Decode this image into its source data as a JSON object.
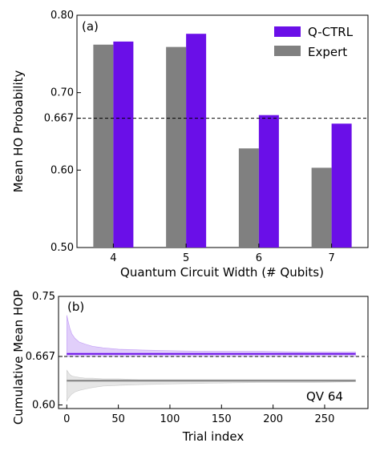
{
  "chart_data": [
    {
      "type": "bar",
      "panel_label": "(a)",
      "xlabel": "Quantum Circuit Width (# Qubits)",
      "ylabel": "Mean HO Probability",
      "categories": [
        "4",
        "5",
        "6",
        "7"
      ],
      "ylim": [
        0.5,
        0.8
      ],
      "yticks": [
        0.5,
        0.6,
        0.667,
        0.7,
        0.8
      ],
      "ytick_labels": [
        "0.50",
        "0.60",
        "0.667",
        "0.70",
        "0.80"
      ],
      "reference_line": 0.667,
      "legend_position": "top-right",
      "grid": false,
      "series": [
        {
          "name": "Expert",
          "color": "#808080",
          "values": [
            0.762,
            0.759,
            0.628,
            0.603
          ]
        },
        {
          "name": "Q-CTRL",
          "color": "#6a0fe8",
          "values": [
            0.766,
            0.776,
            0.671,
            0.66
          ]
        }
      ]
    },
    {
      "type": "line",
      "panel_label": "(b)",
      "xlabel": "Trial index",
      "ylabel": "Cumulative Mean HOP",
      "xlim": [
        -8,
        292
      ],
      "ylim": [
        0.595,
        0.75
      ],
      "xticks": [
        0,
        50,
        100,
        150,
        200,
        250
      ],
      "yticks": [
        0.6,
        0.667,
        0.75
      ],
      "ytick_labels": [
        "0.60",
        "0.667",
        "0.75"
      ],
      "reference_line": 0.667,
      "annotation": "QV 64",
      "grid": false,
      "series": [
        {
          "color": "#6a0fe8",
          "x": [
            0,
            280
          ],
          "y": [
            0.6705,
            0.6705
          ],
          "band_x": [
            0,
            1,
            2,
            3,
            5,
            8,
            12,
            18,
            25,
            35,
            50,
            70,
            100,
            140,
            190,
            240,
            280
          ],
          "band_upper": [
            0.724,
            0.718,
            0.712,
            0.706,
            0.698,
            0.692,
            0.687,
            0.684,
            0.681,
            0.679,
            0.677,
            0.676,
            0.675,
            0.674,
            0.674,
            0.673,
            0.673
          ],
          "band_lower": [
            0.667,
            0.667,
            0.667,
            0.667,
            0.667,
            0.667,
            0.667,
            0.667,
            0.667,
            0.667,
            0.667,
            0.667,
            0.667,
            0.667,
            0.667,
            0.667,
            0.667
          ]
        },
        {
          "color": "#808080",
          "x": [
            0,
            280
          ],
          "y": [
            0.6335,
            0.6335
          ],
          "band_x": [
            0,
            1,
            2,
            3,
            5,
            8,
            12,
            18,
            25,
            35,
            50,
            70,
            100,
            140,
            190,
            240,
            280
          ],
          "band_upper": [
            0.648,
            0.646,
            0.644,
            0.642,
            0.64,
            0.639,
            0.638,
            0.637,
            0.637,
            0.636,
            0.636,
            0.635,
            0.635,
            0.635,
            0.635,
            0.635,
            0.635
          ],
          "band_lower": [
            0.605,
            0.608,
            0.61,
            0.612,
            0.615,
            0.618,
            0.62,
            0.622,
            0.624,
            0.626,
            0.627,
            0.628,
            0.629,
            0.63,
            0.631,
            0.631,
            0.632
          ]
        }
      ]
    }
  ]
}
